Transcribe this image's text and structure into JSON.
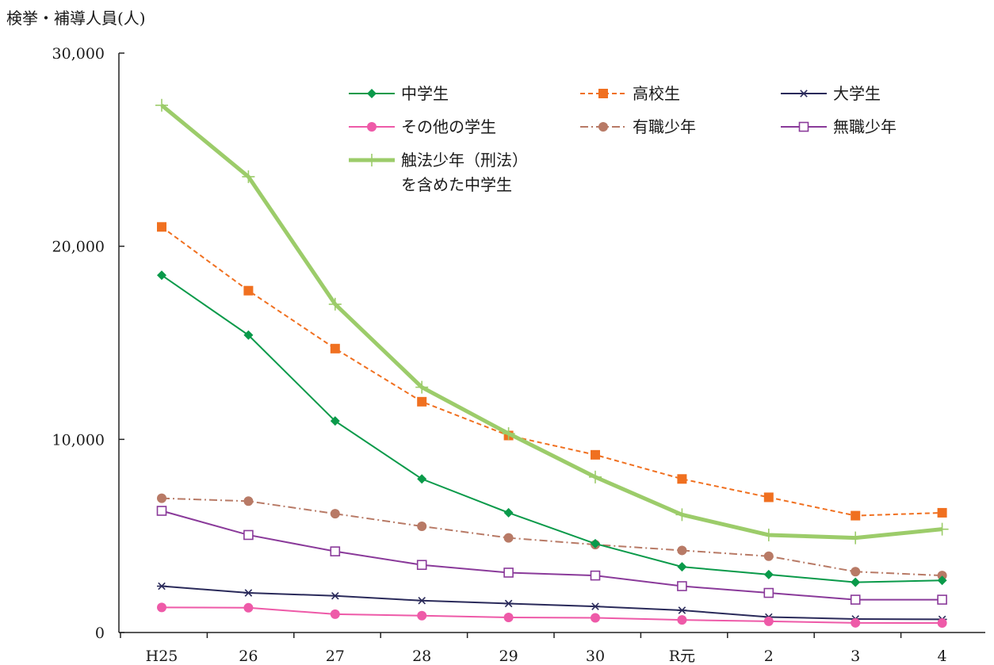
{
  "chart_data": {
    "type": "line",
    "ylabel": "検挙・補導人員(人)",
    "categories": [
      "H25",
      "26",
      "27",
      "28",
      "29",
      "30",
      "R元",
      "2",
      "3",
      "4"
    ],
    "ylim": [
      0,
      30000
    ],
    "yticks": [
      0,
      10000,
      20000,
      30000
    ],
    "ytick_labels": [
      "0",
      "10,000",
      "20,000",
      "30,000"
    ],
    "grid": false,
    "legend_position": "top-right",
    "series": [
      {
        "name": "中学生",
        "color": "#0a9a4a",
        "marker": "diamond",
        "dash": "solid",
        "values": [
          18500,
          15400,
          10950,
          7950,
          6200,
          4600,
          3400,
          3000,
          2600,
          2700
        ]
      },
      {
        "name": "高校生",
        "color": "#f07020",
        "marker": "square",
        "dash": "dashed",
        "values": [
          21000,
          17700,
          14700,
          11950,
          10200,
          9200,
          7950,
          7000,
          6050,
          6200
        ]
      },
      {
        "name": "大学生",
        "color": "#2a2a5a",
        "marker": "asterisk",
        "dash": "solid",
        "values": [
          2400,
          2050,
          1900,
          1650,
          1500,
          1350,
          1150,
          800,
          700,
          680
        ]
      },
      {
        "name": "その他の学生",
        "color": "#ee5aa8",
        "marker": "circle",
        "dash": "solid",
        "values": [
          1300,
          1280,
          950,
          870,
          780,
          760,
          650,
          580,
          500,
          490
        ]
      },
      {
        "name": "有職少年",
        "color": "#b87a66",
        "marker": "circle",
        "dash": "dashdot",
        "values": [
          6950,
          6800,
          6150,
          5500,
          4900,
          4550,
          4250,
          3950,
          3150,
          2950
        ]
      },
      {
        "name": "無職少年",
        "color": "#8a3a9a",
        "marker": "open-square",
        "dash": "solid",
        "values": [
          6300,
          5050,
          4200,
          3500,
          3100,
          2950,
          2400,
          2050,
          1700,
          1700
        ]
      },
      {
        "name": "触法少年（刑法）を含めた中学生",
        "legend_lines": [
          "触法少年（刑法）",
          "を含めた中学生"
        ],
        "color": "#9ccc6a",
        "marker": "plus",
        "dash": "solid",
        "thick": true,
        "values": [
          27300,
          23600,
          17000,
          12700,
          10300,
          8050,
          6100,
          5050,
          4900,
          5350
        ]
      }
    ]
  }
}
